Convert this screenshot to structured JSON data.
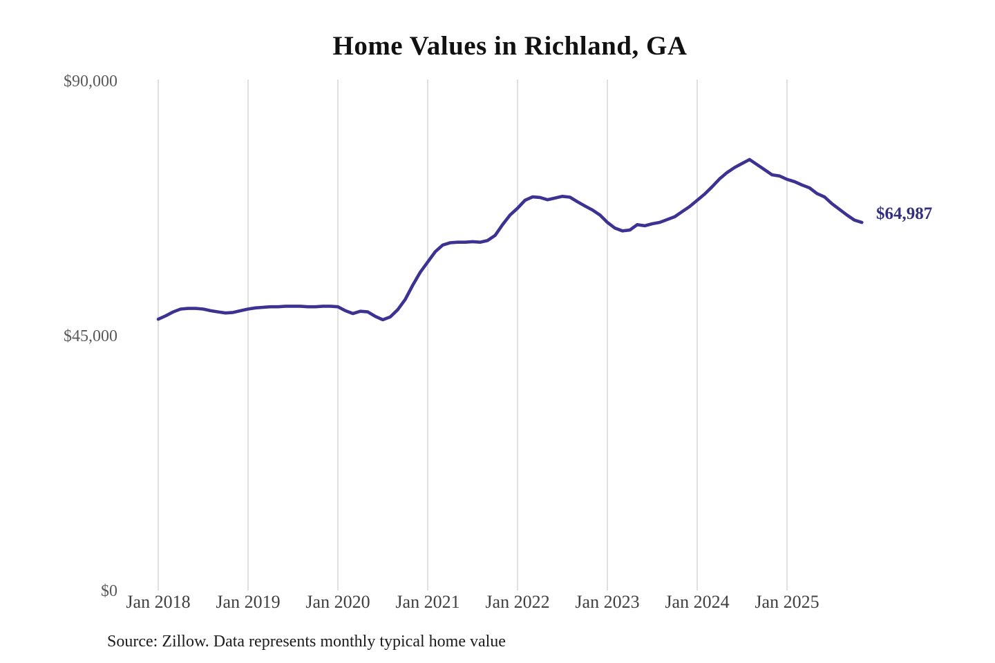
{
  "chart_data": {
    "type": "line",
    "title": "Home Values in Richland, GA",
    "xlabel": "",
    "ylabel": "",
    "ylim": [
      0,
      90000
    ],
    "grid": "vertical-year-lines",
    "legend": "none",
    "end_label": "$64,987",
    "source": "Source: Zillow. Data represents monthly typical home value",
    "x_start": "Jan 2018",
    "x_end": "Nov 2025",
    "x_interval": "monthly",
    "x_tick_labels": [
      "Jan 2018",
      "Jan 2019",
      "Jan 2020",
      "Jan 2021",
      "Jan 2022",
      "Jan 2023",
      "Jan 2024",
      "Jan 2025"
    ],
    "y_ticks": [
      {
        "value": 0,
        "label": "$0"
      },
      {
        "value": 45000,
        "label": "$45,000"
      },
      {
        "value": 90000,
        "label": "$90,000"
      }
    ],
    "series": [
      {
        "name": "Monthly typical home value",
        "color": "#3b3292",
        "values": [
          47900,
          48500,
          49200,
          49700,
          49800,
          49800,
          49700,
          49400,
          49200,
          49000,
          49100,
          49400,
          49700,
          49900,
          50000,
          50100,
          50100,
          50200,
          50200,
          50200,
          50100,
          50100,
          50200,
          50200,
          50100,
          49400,
          48900,
          49300,
          49200,
          48400,
          47800,
          48300,
          49600,
          51400,
          53900,
          56200,
          58000,
          59800,
          61000,
          61400,
          61500,
          61500,
          61600,
          61500,
          61800,
          62700,
          64600,
          66300,
          67500,
          68900,
          69500,
          69400,
          69000,
          69300,
          69600,
          69450,
          68650,
          67900,
          67200,
          66300,
          65000,
          64000,
          63500,
          63650,
          64600,
          64400,
          64750,
          65000,
          65500,
          66000,
          66900,
          67800,
          68900,
          70000,
          71300,
          72700,
          73800,
          74700,
          75400,
          76100,
          75200,
          74300,
          73400,
          73200,
          72600,
          72200,
          71600,
          71100,
          70100,
          69500,
          68300,
          67300,
          66300,
          65400,
          64987
        ]
      }
    ],
    "colors": {
      "line": "#3b3292",
      "end_label": "#32307e",
      "gridline": "#cccccc",
      "y_tick_text": "#595959",
      "x_tick_text": "#404040",
      "title_text": "#111111",
      "source_text": "#1c1c1c",
      "background": "#ffffff"
    }
  }
}
